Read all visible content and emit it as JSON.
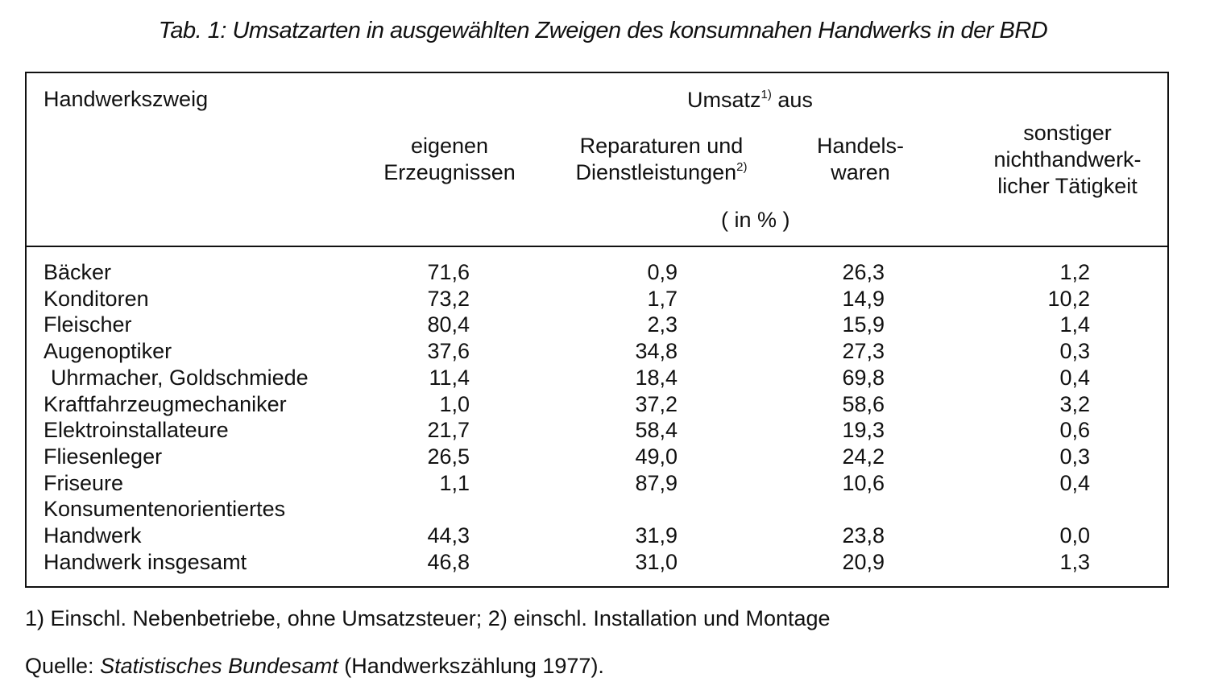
{
  "title": "Tab. 1: Umsatzarten in ausgewählten Zweigen des konsumnahen Handwerks in der BRD",
  "header": {
    "col_branch": "Handwerkszweig",
    "group_label": "Umsatz",
    "group_sup": "1)",
    "group_suffix": "aus",
    "col1_line1": "eigenen",
    "col1_line2": "Erzeugnissen",
    "col2_line1": "Reparaturen und",
    "col2_line2": "Dienstleistungen",
    "col2_sup": "2)",
    "col3_line1": "Handels-",
    "col3_line2": "waren",
    "col4_line1": "sonstiger",
    "col4_line2": "nichthandwerk-",
    "col4_line3": "licher Tätigkeit",
    "unit": "( in % )"
  },
  "rows": [
    {
      "name": "Bäcker",
      "v1": "71,6",
      "v2": "0,9",
      "v3": "26,3",
      "v4": "1,2"
    },
    {
      "name": "Konditoren",
      "v1": "73,2",
      "v2": "1,7",
      "v3": "14,9",
      "v4": "10,2"
    },
    {
      "name": "Fleischer",
      "v1": "80,4",
      "v2": "2,3",
      "v3": "15,9",
      "v4": "1,4"
    },
    {
      "name": "Augenoptiker",
      "v1": "37,6",
      "v2": "34,8",
      "v3": "27,3",
      "v4": "0,3"
    },
    {
      "name": "Uhrmacher, Goldschmiede",
      "v1": "11,4",
      "v2": "18,4",
      "v3": "69,8",
      "v4": "0,4"
    },
    {
      "name": "Kraftfahrzeugmechaniker",
      "v1": "1,0",
      "v2": "37,2",
      "v3": "58,6",
      "v4": "3,2"
    },
    {
      "name": "Elektroinstallateure",
      "v1": "21,7",
      "v2": "58,4",
      "v3": "19,3",
      "v4": "0,6"
    },
    {
      "name": "Fliesenleger",
      "v1": "26,5",
      "v2": "49,0",
      "v3": "24,2",
      "v4": "0,3"
    },
    {
      "name": "Friseure",
      "v1": "1,1",
      "v2": "87,9",
      "v3": "10,6",
      "v4": "0,4"
    },
    {
      "name": "Konsumentenorientiertes",
      "v1": "",
      "v2": "",
      "v3": "",
      "v4": ""
    },
    {
      "name": "Handwerk",
      "v1": "44,3",
      "v2": "31,9",
      "v3": "23,8",
      "v4": "0,0"
    },
    {
      "name": "Handwerk insgesamt",
      "v1": "46,8",
      "v2": "31,0",
      "v3": "20,9",
      "v4": "1,3"
    }
  ],
  "footnote": "1) Einschl. Nebenbetriebe, ohne Umsatzsteuer; 2) einschl. Installation und Montage",
  "source": {
    "prefix": "Quelle:",
    "name": "Statistisches Bundesamt",
    "suffix": "(Handwerkszählung 1977)."
  }
}
